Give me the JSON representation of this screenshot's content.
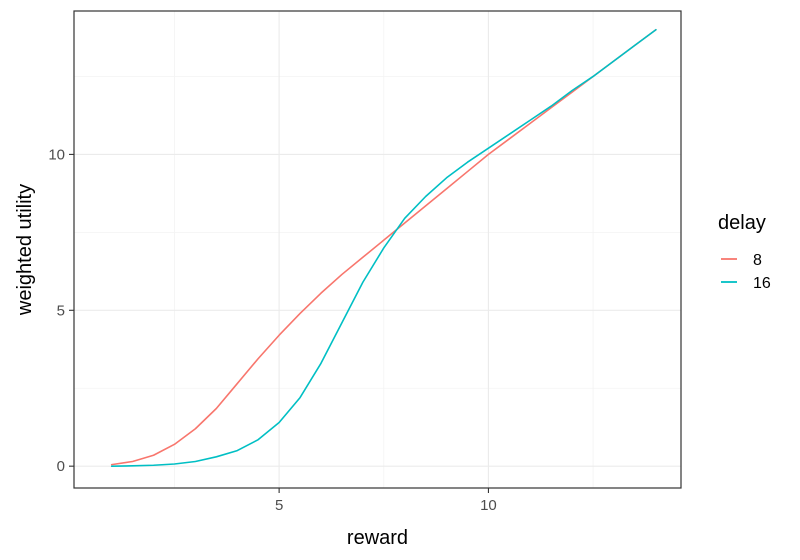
{
  "chart_data": {
    "type": "line",
    "title": "",
    "xlabel": "reward",
    "ylabel": "weighted utility",
    "xlim": [
      0.1,
      14.6
    ],
    "ylim": [
      -0.7,
      14.6
    ],
    "x_major_ticks": [
      5,
      10
    ],
    "x_minor_ticks": [
      2.5,
      7.5,
      12.5
    ],
    "y_major_ticks": [
      0,
      5,
      10
    ],
    "y_minor_ticks": [
      2.5,
      7.5,
      12.5
    ],
    "grid": true,
    "legend": {
      "title": "delay",
      "position": "right"
    },
    "series": [
      {
        "name": "8",
        "color": "#F8766D",
        "x": [
          1,
          1.5,
          2,
          2.5,
          3,
          3.5,
          4,
          4.5,
          5,
          5.5,
          6,
          6.5,
          7,
          7.5,
          8,
          8.5,
          9,
          9.5,
          10,
          10.5,
          11,
          11.5,
          12,
          12.5,
          13,
          13.5,
          14
        ],
        "y": [
          0.05,
          0.15,
          0.35,
          0.7,
          1.2,
          1.85,
          2.65,
          3.45,
          4.2,
          4.9,
          5.55,
          6.15,
          6.7,
          7.25,
          7.8,
          8.35,
          8.9,
          9.45,
          10.0,
          10.5,
          11.0,
          11.5,
          12.0,
          12.5,
          13.0,
          13.5,
          14.0
        ]
      },
      {
        "name": "16",
        "color": "#00BFC4",
        "x": [
          1,
          1.5,
          2,
          2.5,
          3,
          3.5,
          4,
          4.5,
          5,
          5.5,
          6,
          6.5,
          7,
          7.5,
          8,
          8.5,
          9,
          9.5,
          10,
          10.5,
          11,
          11.5,
          12,
          12.5,
          13,
          13.5,
          14
        ],
        "y": [
          0.0,
          0.01,
          0.03,
          0.07,
          0.15,
          0.3,
          0.5,
          0.85,
          1.4,
          2.2,
          3.3,
          4.6,
          5.9,
          7.0,
          7.95,
          8.65,
          9.25,
          9.75,
          10.2,
          10.65,
          11.1,
          11.55,
          12.05,
          12.5,
          13.0,
          13.5,
          14.0
        ]
      }
    ]
  }
}
